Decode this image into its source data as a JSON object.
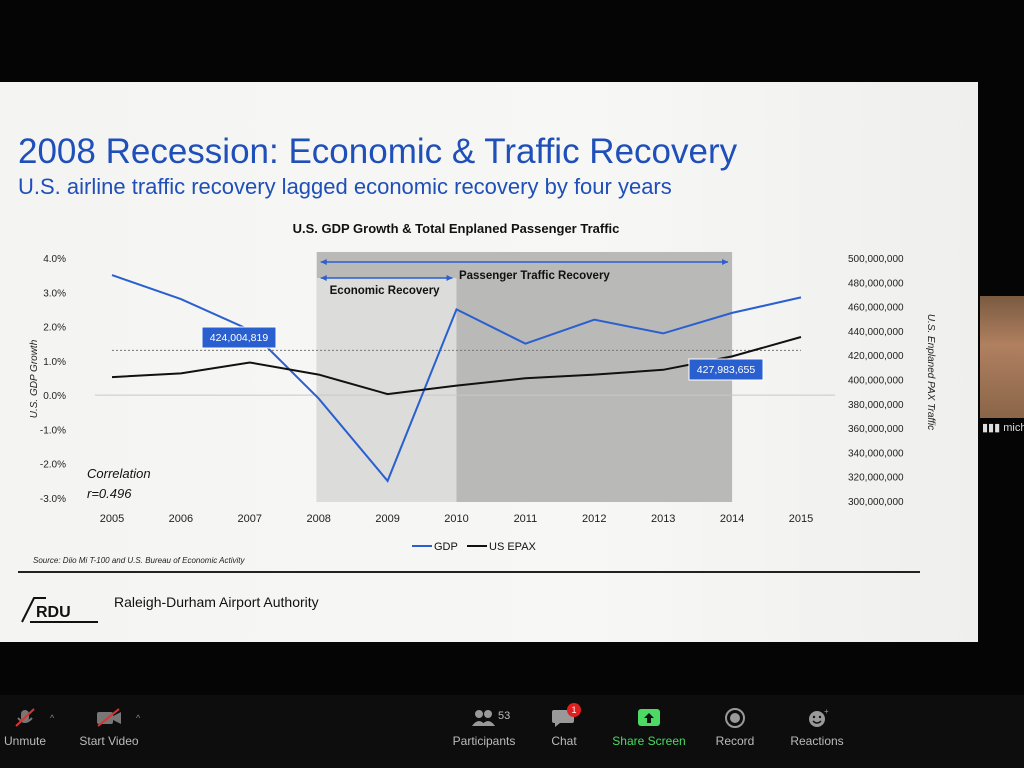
{
  "slide": {
    "title": "2008 Recession: Economic & Traffic Recovery",
    "subtitle": "U.S. airline traffic recovery lagged economic recovery by four years",
    "source": "Source: Diio Mi T-100 and U.S. Bureau of Economic Activity",
    "authority": "Raleigh-Durham Airport Authority",
    "logo_text": "RDU"
  },
  "chart_data": {
    "type": "line",
    "title": "U.S. GDP Growth & Total Enplaned Passenger Traffic",
    "x": [
      "2005",
      "2006",
      "2007",
      "2008",
      "2009",
      "2010",
      "2011",
      "2012",
      "2013",
      "2014",
      "2015"
    ],
    "series": [
      {
        "name": "GDP",
        "axis": "left",
        "color": "#2a5fd0",
        "values": [
          3.5,
          2.8,
          1.9,
          -0.1,
          -2.5,
          2.5,
          1.5,
          2.2,
          1.8,
          2.4,
          2.85
        ]
      },
      {
        "name": "US EPAX",
        "axis": "right",
        "color": "#111111",
        "values": [
          402000000,
          405000000,
          414000000,
          404000000,
          388000000,
          395000000,
          401000000,
          404000000,
          408000000,
          419000000,
          435000000
        ]
      }
    ],
    "ylabel": "U.S. GDP Growth",
    "y2label": "U.S. Enplaned PAX Traffic",
    "ylim": [
      -3.0,
      4.0
    ],
    "y2lim": [
      300000000,
      500000000
    ],
    "yticks": [
      "4.0%",
      "3.0%",
      "2.0%",
      "1.0%",
      "0.0%",
      "-1.0%",
      "-2.0%",
      "-3.0%"
    ],
    "y2ticks": [
      "500,000,000",
      "480,000,000",
      "460,000,000",
      "440,000,000",
      "420,000,000",
      "400,000,000",
      "380,000,000",
      "360,000,000",
      "340,000,000",
      "320,000,000",
      "300,000,000"
    ],
    "reference_line": 424004819,
    "callouts": [
      {
        "text": "424,004,819",
        "x": "2007"
      },
      {
        "text": "427,983,655",
        "x": "2014"
      }
    ],
    "regions": [
      {
        "label": "Passenger Traffic Recovery",
        "from": "2008",
        "to": "2014"
      },
      {
        "label": "Economic Recovery",
        "from": "2008",
        "to": "2010"
      }
    ],
    "annotation": [
      "Correlation",
      "r=0.496"
    ],
    "legend": "bottom",
    "grid": false
  },
  "side_participant": {
    "name": "mich",
    "signal_icon": "signal-bars-icon"
  },
  "toolbar": {
    "unmute": "Unmute",
    "start_video": "Start Video",
    "participants": "Participants",
    "participants_count": "53",
    "chat": "Chat",
    "chat_badge": "1",
    "share_screen": "Share Screen",
    "record": "Record",
    "reactions": "Reactions",
    "share_color": "#4cd964",
    "badge_color": "#e02020"
  }
}
